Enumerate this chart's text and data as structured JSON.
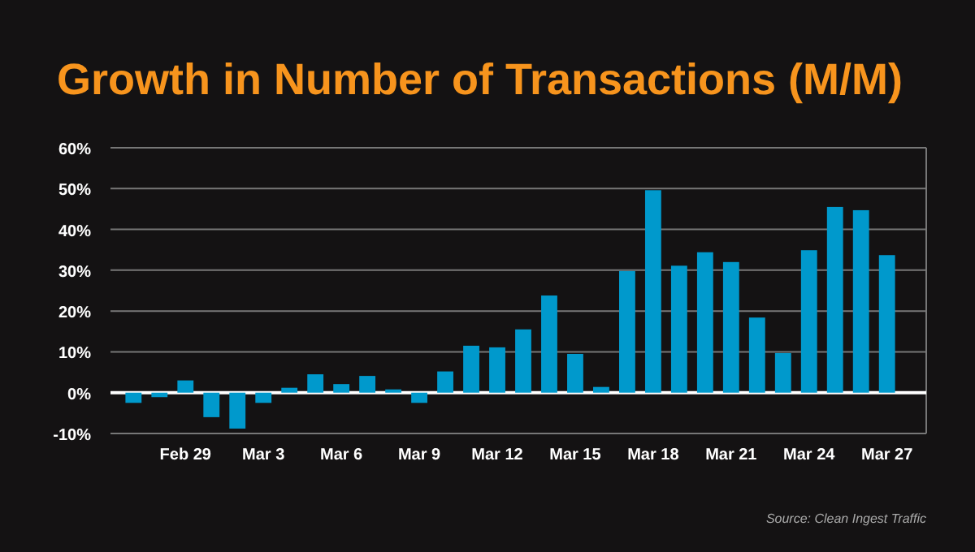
{
  "chart_data": {
    "type": "bar",
    "title": "Growth in Number of Transactions (M/M)",
    "categories": [
      null,
      null,
      "Feb 29",
      null,
      null,
      "Mar 3",
      null,
      null,
      "Mar 6",
      null,
      null,
      "Mar 9",
      null,
      null,
      "Mar 12",
      null,
      null,
      "Mar 15",
      null,
      null,
      "Mar 18",
      null,
      null,
      "Mar 21",
      null,
      null,
      "Mar 24",
      null,
      null,
      "Mar 27"
    ],
    "values": [
      -2.5,
      -1.1,
      3.0,
      -6.0,
      -8.8,
      -2.5,
      1.2,
      4.5,
      2.1,
      4.1,
      0.8,
      -2.5,
      5.2,
      11.5,
      11.1,
      15.5,
      23.8,
      9.5,
      1.4,
      29.8,
      49.6,
      31.1,
      34.4,
      32.0,
      18.4,
      9.7,
      34.9,
      45.5,
      44.7,
      33.7
    ],
    "color": "#0099cc",
    "ylim": [
      -10,
      60
    ],
    "yticks": [
      {
        "value": -10,
        "label": "-10%"
      },
      {
        "value": 0,
        "label": "0%"
      },
      {
        "value": 10,
        "label": "10%"
      },
      {
        "value": 20,
        "label": "20%"
      },
      {
        "value": 30,
        "label": "30%"
      },
      {
        "value": 40,
        "label": "40%"
      },
      {
        "value": 50,
        "label": "50%"
      },
      {
        "value": 60,
        "label": "60%"
      }
    ],
    "grid": "y",
    "annotations": [
      "Source: Clean Ingest Traffic"
    ]
  }
}
